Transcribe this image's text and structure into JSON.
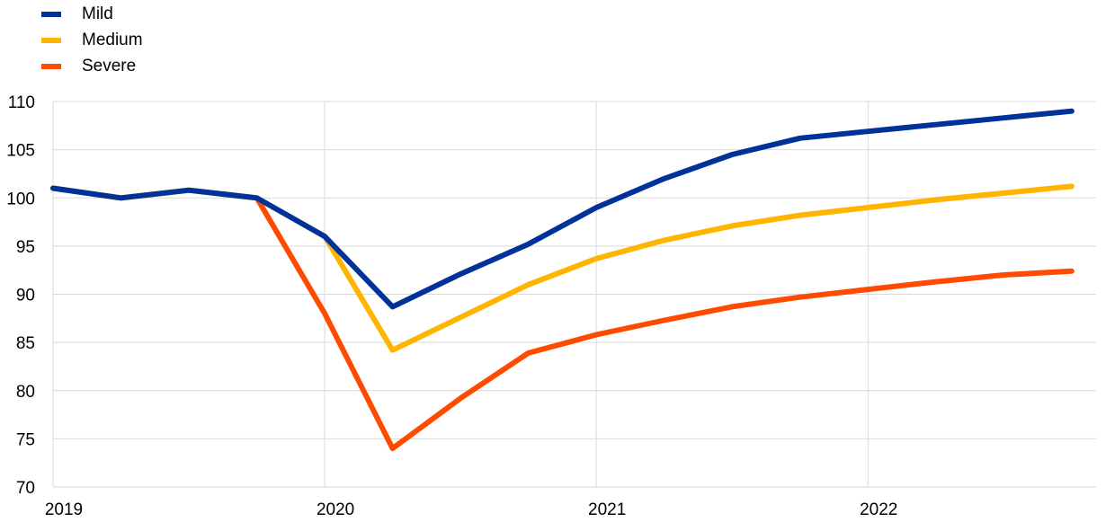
{
  "chart_data": {
    "type": "line",
    "title": "",
    "xlabel": "",
    "ylabel": "",
    "ylim": [
      70,
      110
    ],
    "yticks": [
      110,
      105,
      100,
      95,
      90,
      85,
      80,
      75,
      70
    ],
    "x_tick_labels": [
      "2019",
      "2020",
      "2021",
      "2022"
    ],
    "x_ticks": [
      2019.0,
      2020.0,
      2021.0,
      2022.0
    ],
    "xlim": [
      2019.0,
      2022.84
    ],
    "grid": true,
    "legend_position": "top-left",
    "x": [
      2019.0,
      2019.25,
      2019.5,
      2019.75,
      2020.0,
      2020.25,
      2020.5,
      2020.75,
      2021.0,
      2021.25,
      2021.5,
      2021.75,
      2022.0,
      2022.25,
      2022.5,
      2022.75
    ],
    "series": [
      {
        "name": "Mild",
        "color": "#003299",
        "values": [
          101.0,
          100.0,
          100.8,
          100.0,
          96.0,
          88.7,
          92.1,
          95.2,
          99.0,
          102.0,
          104.5,
          106.2,
          106.9,
          107.6,
          108.3,
          109.0
        ]
      },
      {
        "name": "Medium",
        "color": "#FFB400",
        "values": [
          101.0,
          100.0,
          100.8,
          100.0,
          96.0,
          84.2,
          87.6,
          91.0,
          93.7,
          95.6,
          97.1,
          98.2,
          99.0,
          99.8,
          100.5,
          101.2
        ]
      },
      {
        "name": "Severe",
        "color": "#FF4B00",
        "values": [
          101.0,
          100.0,
          100.8,
          100.0,
          88.0,
          74.0,
          79.2,
          83.9,
          85.8,
          87.3,
          88.7,
          89.7,
          90.5,
          91.3,
          92.0,
          92.4
        ]
      }
    ]
  }
}
